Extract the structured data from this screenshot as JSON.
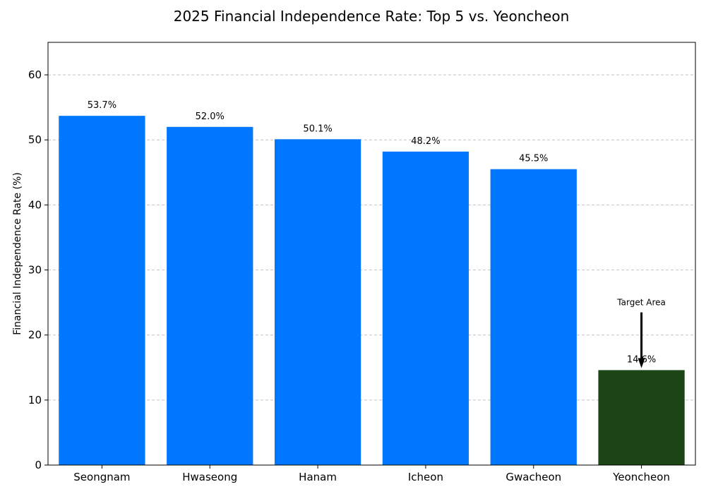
{
  "chart_data": {
    "type": "bar",
    "title": "2025 Financial Independence Rate: Top 5 vs. Yeoncheon",
    "xlabel": "",
    "ylabel": "Financial Independence Rate (%)",
    "ylim": [
      0,
      65
    ],
    "yticks": [
      0,
      10,
      20,
      30,
      40,
      50,
      60
    ],
    "grid": "y-dashed",
    "categories": [
      "Seongnam",
      "Hwaseong",
      "Hanam",
      "Icheon",
      "Gwacheon",
      "Yeoncheon"
    ],
    "values": [
      53.7,
      52.0,
      50.1,
      48.2,
      45.5,
      14.6
    ],
    "value_labels": [
      "53.7%",
      "52.0%",
      "50.1%",
      "48.2%",
      "45.5%",
      "14.6%"
    ],
    "colors": [
      "#0077FF",
      "#0077FF",
      "#0077FF",
      "#0077FF",
      "#0077FF",
      "#1B4515"
    ],
    "annotation": {
      "text": "Target Area",
      "category": "Yeoncheon",
      "text_y": 25,
      "arrow_to_y": 14.6
    }
  }
}
